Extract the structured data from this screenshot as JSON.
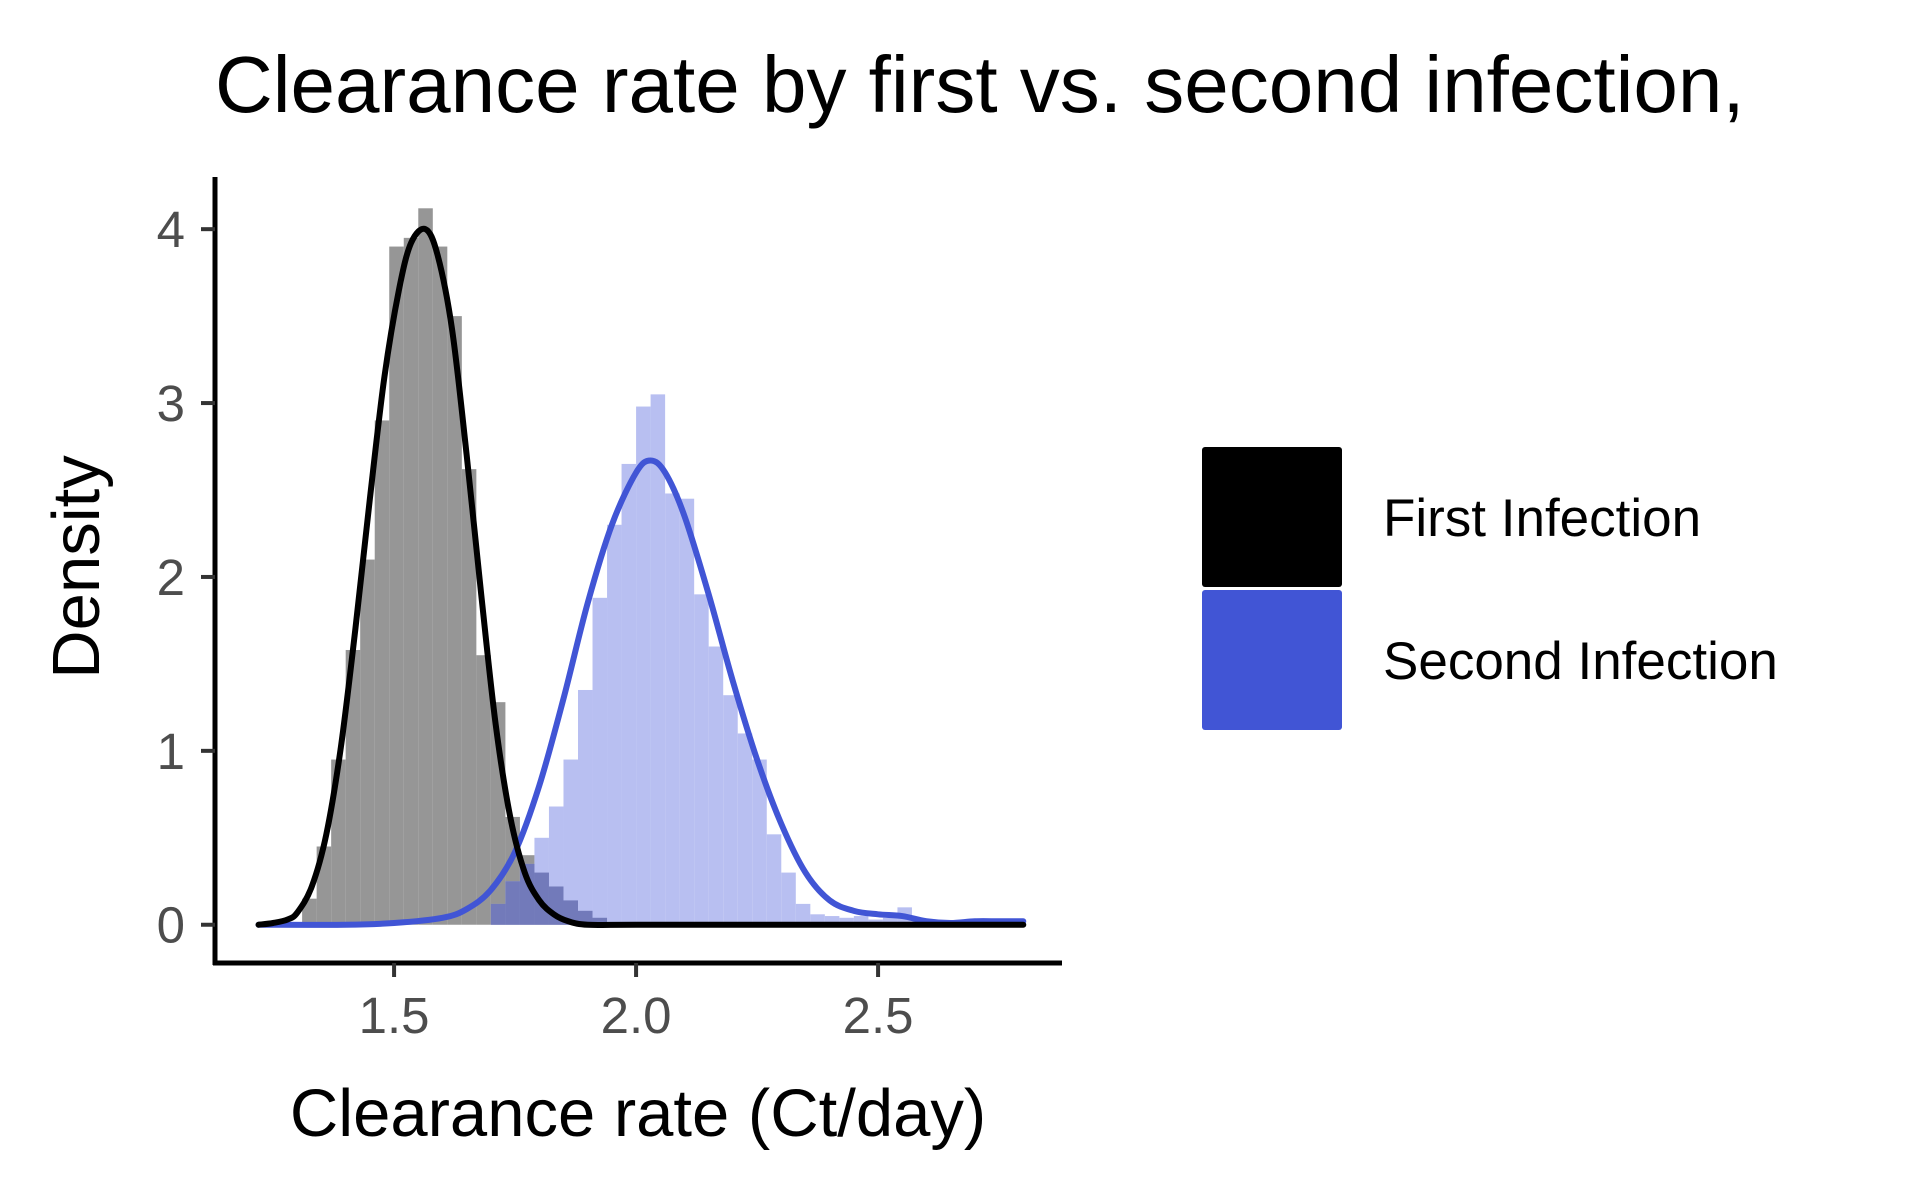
{
  "chart_data": {
    "type": "histogram_density",
    "title": "Clearance rate by first vs. second infection,",
    "xlabel": "Clearance rate (Ct/day)",
    "ylabel": "Density",
    "xlim": [
      1.13,
      2.88
    ],
    "ylim": [
      -0.22,
      4.3
    ],
    "x_ticks": [
      {
        "value": 1.5,
        "label": "1.5"
      },
      {
        "value": 2.0,
        "label": "2.0"
      },
      {
        "value": 2.5,
        "label": "2.5"
      }
    ],
    "y_ticks": [
      {
        "value": 0,
        "label": "0"
      },
      {
        "value": 1,
        "label": "1"
      },
      {
        "value": 2,
        "label": "2"
      },
      {
        "value": 3,
        "label": "3"
      },
      {
        "value": 4,
        "label": "4"
      }
    ],
    "grid": false,
    "legend_position": "right",
    "bin_width": 0.03,
    "series": [
      {
        "name": "First Infection",
        "line_color": "#000000",
        "bar_color": "#7f7f7f",
        "legend_color": "#000000",
        "density_peak": {
          "x": 1.565,
          "y": 4.0
        },
        "histogram": [
          {
            "x0": 1.31,
            "x1": 1.34,
            "y": 0.15
          },
          {
            "x0": 1.34,
            "x1": 1.37,
            "y": 0.45
          },
          {
            "x0": 1.37,
            "x1": 1.4,
            "y": 0.95
          },
          {
            "x0": 1.4,
            "x1": 1.43,
            "y": 1.58
          },
          {
            "x0": 1.43,
            "x1": 1.46,
            "y": 2.1
          },
          {
            "x0": 1.46,
            "x1": 1.49,
            "y": 2.9
          },
          {
            "x0": 1.49,
            "x1": 1.52,
            "y": 3.9
          },
          {
            "x0": 1.52,
            "x1": 1.55,
            "y": 3.95
          },
          {
            "x0": 1.55,
            "x1": 1.58,
            "y": 4.12
          },
          {
            "x0": 1.58,
            "x1": 1.61,
            "y": 3.9
          },
          {
            "x0": 1.61,
            "x1": 1.64,
            "y": 3.5
          },
          {
            "x0": 1.64,
            "x1": 1.67,
            "y": 2.62
          },
          {
            "x0": 1.67,
            "x1": 1.7,
            "y": 1.55
          },
          {
            "x0": 1.7,
            "x1": 1.73,
            "y": 1.28
          },
          {
            "x0": 1.73,
            "x1": 1.76,
            "y": 0.62
          },
          {
            "x0": 1.76,
            "x1": 1.79,
            "y": 0.4
          },
          {
            "x0": 1.79,
            "x1": 1.82,
            "y": 0.3
          },
          {
            "x0": 1.82,
            "x1": 1.85,
            "y": 0.22
          },
          {
            "x0": 1.85,
            "x1": 1.88,
            "y": 0.14
          },
          {
            "x0": 1.88,
            "x1": 1.91,
            "y": 0.08
          },
          {
            "x0": 1.91,
            "x1": 1.94,
            "y": 0.04
          }
        ],
        "density_curve": [
          [
            1.22,
            0.0
          ],
          [
            1.25,
            0.01
          ],
          [
            1.28,
            0.03
          ],
          [
            1.3,
            0.07
          ],
          [
            1.33,
            0.22
          ],
          [
            1.36,
            0.52
          ],
          [
            1.39,
            1.02
          ],
          [
            1.42,
            1.7
          ],
          [
            1.45,
            2.45
          ],
          [
            1.48,
            3.15
          ],
          [
            1.51,
            3.65
          ],
          [
            1.535,
            3.92
          ],
          [
            1.565,
            4.0
          ],
          [
            1.59,
            3.85
          ],
          [
            1.62,
            3.42
          ],
          [
            1.65,
            2.7
          ],
          [
            1.68,
            1.9
          ],
          [
            1.71,
            1.15
          ],
          [
            1.74,
            0.62
          ],
          [
            1.77,
            0.3
          ],
          [
            1.8,
            0.14
          ],
          [
            1.83,
            0.06
          ],
          [
            1.86,
            0.02
          ],
          [
            1.9,
            0.0
          ],
          [
            2.0,
            0.0
          ],
          [
            2.4,
            0.0
          ],
          [
            2.8,
            0.0
          ]
        ]
      },
      {
        "name": "Second Infection",
        "line_color": "#4155d5",
        "bar_color": "#b0b8ef",
        "legend_color": "#4155d5",
        "density_peak": {
          "x": 2.03,
          "y": 2.67
        },
        "histogram": [
          {
            "x0": 1.7,
            "x1": 1.73,
            "y": 0.12
          },
          {
            "x0": 1.73,
            "x1": 1.76,
            "y": 0.25
          },
          {
            "x0": 1.76,
            "x1": 1.79,
            "y": 0.35
          },
          {
            "x0": 1.79,
            "x1": 1.82,
            "y": 0.5
          },
          {
            "x0": 1.82,
            "x1": 1.85,
            "y": 0.68
          },
          {
            "x0": 1.85,
            "x1": 1.88,
            "y": 0.95
          },
          {
            "x0": 1.88,
            "x1": 1.91,
            "y": 1.35
          },
          {
            "x0": 1.91,
            "x1": 1.94,
            "y": 1.88
          },
          {
            "x0": 1.94,
            "x1": 1.97,
            "y": 2.3
          },
          {
            "x0": 1.97,
            "x1": 2.0,
            "y": 2.65
          },
          {
            "x0": 2.0,
            "x1": 2.03,
            "y": 2.98
          },
          {
            "x0": 2.03,
            "x1": 2.06,
            "y": 3.05
          },
          {
            "x0": 2.06,
            "x1": 2.09,
            "y": 2.48
          },
          {
            "x0": 2.09,
            "x1": 2.12,
            "y": 2.45
          },
          {
            "x0": 2.12,
            "x1": 2.15,
            "y": 1.9
          },
          {
            "x0": 2.15,
            "x1": 2.18,
            "y": 1.6
          },
          {
            "x0": 2.18,
            "x1": 2.21,
            "y": 1.32
          },
          {
            "x0": 2.21,
            "x1": 2.24,
            "y": 1.1
          },
          {
            "x0": 2.24,
            "x1": 2.27,
            "y": 0.95
          },
          {
            "x0": 2.27,
            "x1": 2.3,
            "y": 0.52
          },
          {
            "x0": 2.3,
            "x1": 2.33,
            "y": 0.3
          },
          {
            "x0": 2.33,
            "x1": 2.36,
            "y": 0.12
          },
          {
            "x0": 2.36,
            "x1": 2.39,
            "y": 0.06
          },
          {
            "x0": 2.39,
            "x1": 2.42,
            "y": 0.05
          },
          {
            "x0": 2.42,
            "x1": 2.45,
            "y": 0.04
          },
          {
            "x0": 2.45,
            "x1": 2.48,
            "y": 0.05
          },
          {
            "x0": 2.48,
            "x1": 2.51,
            "y": 0.03
          },
          {
            "x0": 2.51,
            "x1": 2.54,
            "y": 0.04
          },
          {
            "x0": 2.54,
            "x1": 2.57,
            "y": 0.1
          },
          {
            "x0": 2.57,
            "x1": 2.6,
            "y": 0.03
          },
          {
            "x0": 2.6,
            "x1": 2.63,
            "y": 0.02
          }
        ],
        "density_curve": [
          [
            1.22,
            0.0
          ],
          [
            1.4,
            0.0
          ],
          [
            1.5,
            0.01
          ],
          [
            1.6,
            0.04
          ],
          [
            1.65,
            0.09
          ],
          [
            1.7,
            0.2
          ],
          [
            1.75,
            0.42
          ],
          [
            1.8,
            0.8
          ],
          [
            1.85,
            1.3
          ],
          [
            1.9,
            1.85
          ],
          [
            1.95,
            2.3
          ],
          [
            2.0,
            2.6
          ],
          [
            2.03,
            2.67
          ],
          [
            2.06,
            2.6
          ],
          [
            2.1,
            2.35
          ],
          [
            2.15,
            1.9
          ],
          [
            2.2,
            1.4
          ],
          [
            2.25,
            0.95
          ],
          [
            2.3,
            0.58
          ],
          [
            2.35,
            0.3
          ],
          [
            2.4,
            0.14
          ],
          [
            2.45,
            0.08
          ],
          [
            2.5,
            0.06
          ],
          [
            2.55,
            0.05
          ],
          [
            2.6,
            0.02
          ],
          [
            2.65,
            0.01
          ],
          [
            2.7,
            0.02
          ],
          [
            2.75,
            0.02
          ],
          [
            2.8,
            0.02
          ]
        ]
      }
    ]
  }
}
